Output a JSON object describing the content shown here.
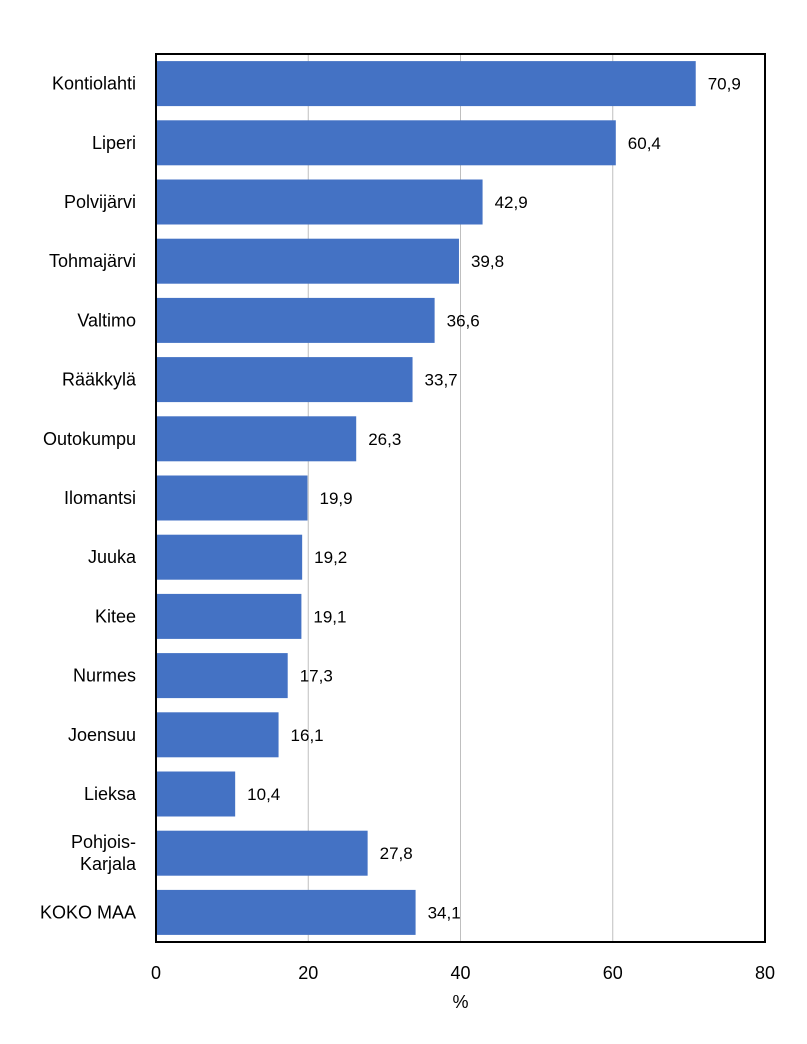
{
  "chart_data": {
    "type": "bar",
    "orientation": "horizontal",
    "categories": [
      "Kontiolahti",
      "Liperi",
      "Polvijärvi",
      "Tohmajärvi",
      "Valtimo",
      "Rääkkylä",
      "Outokumpu",
      "Ilomantsi",
      "Juuka",
      "Kitee",
      "Nurmes",
      "Joensuu",
      "Lieksa",
      "Pohjois-\nKarjala",
      "KOKO MAA"
    ],
    "values": [
      70.9,
      60.4,
      42.9,
      39.8,
      36.6,
      33.7,
      26.3,
      19.9,
      19.2,
      19.1,
      17.3,
      16.1,
      10.4,
      27.8,
      34.1
    ],
    "value_labels": [
      "70,9",
      "60,4",
      "42,9",
      "39,8",
      "36,6",
      "33,7",
      "26,3",
      "19,9",
      "19,2",
      "19,1",
      "17,3",
      "16,1",
      "10,4",
      "27,8",
      "34,1"
    ],
    "xlabel": "%",
    "xlim": [
      0,
      80
    ],
    "x_ticks": [
      0,
      20,
      40,
      60,
      80
    ],
    "x_tick_labels": [
      "0",
      "20",
      "40",
      "60",
      "80"
    ],
    "grid": "vertical",
    "bar_color": "#4472C4",
    "grid_color": "#BFBFBF",
    "frame_color": "#000000"
  }
}
